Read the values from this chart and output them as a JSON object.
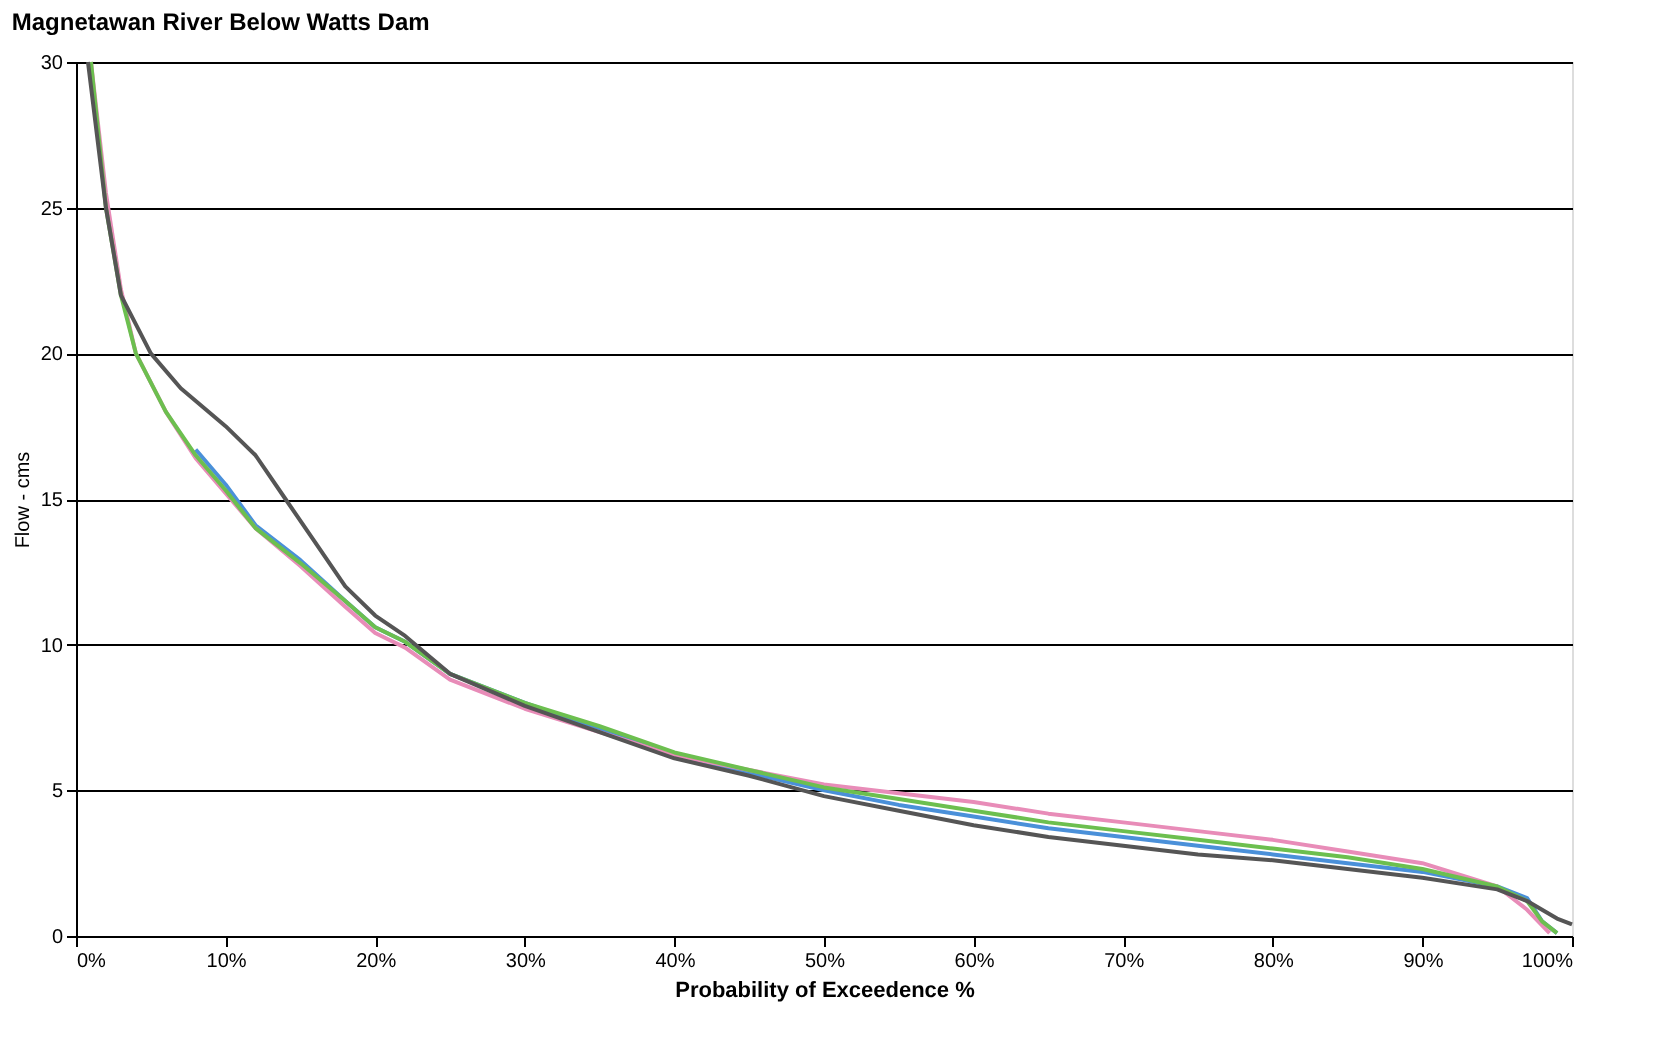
{
  "chart_data": {
    "type": "line",
    "title": "Magnetawan River Below Watts Dam",
    "xlabel": "Probability of Exceedence %",
    "ylabel": "Flow - cms",
    "xlim": [
      0,
      100
    ],
    "xticks": [
      {
        "value": 0,
        "label": "0%"
      },
      {
        "value": 10,
        "label": "10%"
      },
      {
        "value": 20,
        "label": "20%"
      },
      {
        "value": 30,
        "label": "30%"
      },
      {
        "value": 40,
        "label": "40%"
      },
      {
        "value": 50,
        "label": "50%"
      },
      {
        "value": 60,
        "label": "60%"
      },
      {
        "value": 70,
        "label": "70%"
      },
      {
        "value": 80,
        "label": "80%"
      },
      {
        "value": 90,
        "label": "90%"
      },
      {
        "value": 100,
        "label": "100%"
      }
    ],
    "ylim": [
      0,
      30
    ],
    "yticks": [
      0,
      5,
      10,
      15,
      20,
      25,
      30
    ],
    "grid": "y",
    "marker": "none",
    "line_style": "solid",
    "series": [
      {
        "color": "#4a90d9",
        "x": [
          8,
          10,
          12,
          15,
          18,
          20,
          22,
          25,
          30,
          35,
          40,
          45,
          50,
          55,
          60,
          65,
          70,
          75,
          80,
          85,
          90,
          95,
          97,
          98,
          99
        ],
        "values": [
          16.7,
          15.5,
          14.1,
          12.9,
          11.5,
          10.6,
          10.1,
          9,
          8,
          7.1,
          6.2,
          5.6,
          5,
          4.5,
          4.1,
          3.7,
          3.4,
          3.1,
          2.8,
          2.5,
          2.2,
          1.7,
          1.3,
          0.5,
          0.1
        ]
      },
      {
        "color": "#e88cb8",
        "x": [
          1,
          2,
          3,
          4,
          6,
          8,
          10,
          12,
          15,
          18,
          20,
          22,
          25,
          30,
          35,
          40,
          45,
          50,
          55,
          60,
          65,
          70,
          75,
          80,
          85,
          90,
          95,
          97,
          98.5
        ],
        "values": [
          30,
          25.5,
          22.2,
          20,
          18,
          16.4,
          15.2,
          14,
          12.7,
          11.3,
          10.4,
          9.9,
          8.8,
          7.8,
          7,
          6.2,
          5.7,
          5.2,
          4.9,
          4.6,
          4.2,
          3.9,
          3.6,
          3.3,
          2.9,
          2.5,
          1.7,
          0.9,
          0.1
        ]
      },
      {
        "color": "#6cbf4f",
        "x": [
          1,
          2,
          3,
          4,
          6,
          8,
          10,
          12,
          15,
          18,
          20,
          22,
          25,
          30,
          35,
          40,
          45,
          50,
          55,
          60,
          65,
          70,
          75,
          80,
          85,
          90,
          95,
          97,
          98,
          99
        ],
        "values": [
          30,
          25,
          22,
          20,
          18,
          16.5,
          15.3,
          14,
          12.8,
          11.5,
          10.6,
          10.1,
          9,
          8,
          7.2,
          6.3,
          5.7,
          5.1,
          4.7,
          4.3,
          3.9,
          3.6,
          3.3,
          3,
          2.7,
          2.3,
          1.7,
          1.2,
          0.5,
          0.1
        ]
      },
      {
        "color": "#555555",
        "x": [
          0.8,
          2,
          3,
          5,
          7,
          10,
          12,
          14,
          16,
          18,
          20,
          22,
          25,
          30,
          35,
          40,
          45,
          50,
          55,
          60,
          65,
          70,
          75,
          80,
          85,
          90,
          95,
          97,
          99,
          100
        ],
        "values": [
          30,
          25,
          22,
          20,
          18.8,
          17.5,
          16.5,
          15,
          13.5,
          12,
          11,
          10.3,
          9,
          7.9,
          7,
          6.1,
          5.5,
          4.8,
          4.3,
          3.8,
          3.4,
          3.1,
          2.8,
          2.6,
          2.3,
          2,
          1.6,
          1.2,
          0.6,
          0.4
        ]
      }
    ]
  }
}
